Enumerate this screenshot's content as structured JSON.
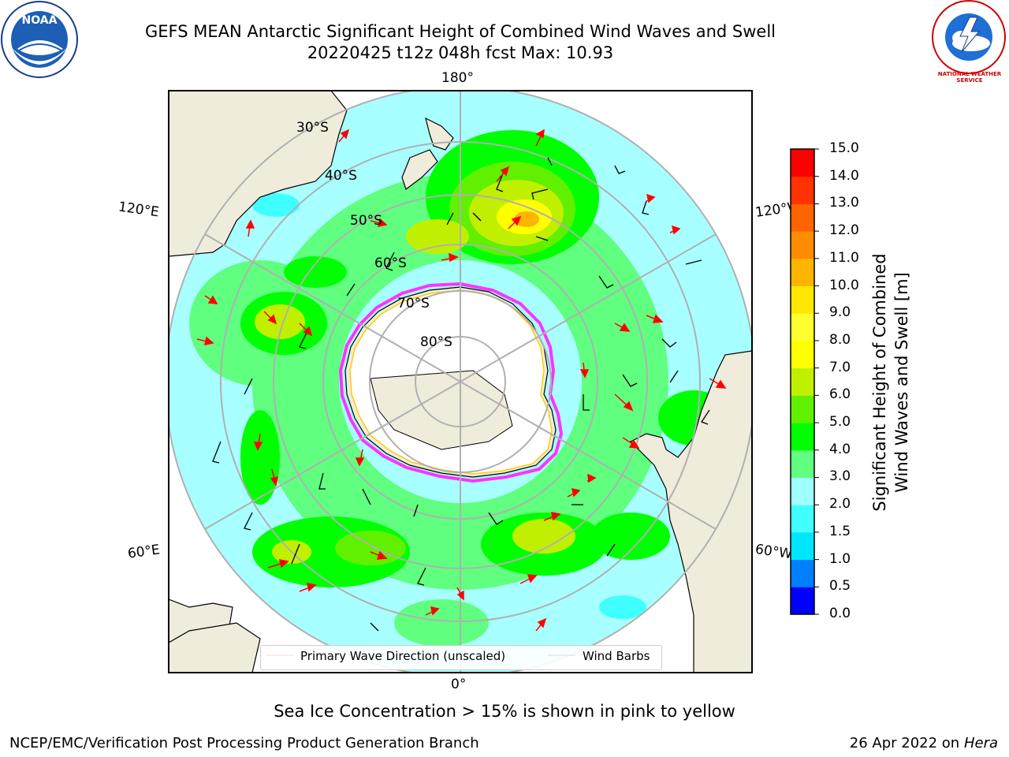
{
  "title": {
    "line1": "GEFS MEAN Antarctic Significant Height of Combined Wind Waves and Swell",
    "line2": "20220425 t12z 048h fcst   Max: 10.93"
  },
  "logos": {
    "left": {
      "text": "NOAA",
      "icon": "noaa-logo"
    },
    "right": {
      "text": "NATIONAL WEATHER SERVICE",
      "icon": "nws-logo"
    }
  },
  "map": {
    "projection": "south-polar-stereographic",
    "lat_labels": [
      "30°S",
      "40°S",
      "50°S",
      "60°S",
      "70°S",
      "80°S"
    ],
    "lon_labels": {
      "top": "180°",
      "bottom": "0°",
      "upper_left": "120°E",
      "upper_right": "120°W",
      "lower_left": "60°E",
      "lower_right": "60°W"
    },
    "colors": {
      "land": "#efecdc",
      "ice": "#ffffff",
      "ice_edge": "#ff33ff",
      "ice_edge_inner": "#ffcc00",
      "arrow": "#ff0000",
      "barb": "#000000",
      "grid": "#b0b0b0"
    }
  },
  "legend": {
    "wave_label": "Primary Wave Direction (unscaled)",
    "barb_label": "Wind Barbs"
  },
  "colorbar": {
    "label_line1": "Significant Height of Combined",
    "label_line2": "Wind Waves and Swell [m]",
    "ticks": [
      "0.0",
      "0.5",
      "1.0",
      "1.5",
      "2.0",
      "3.0",
      "4.0",
      "5.0",
      "6.0",
      "7.0",
      "8.0",
      "9.0",
      "10.0",
      "11.0",
      "12.0",
      "13.0",
      "14.0",
      "15.0"
    ],
    "colors": [
      "#0000ff",
      "#0080ff",
      "#00e6ff",
      "#40ffff",
      "#a0ffff",
      "#60ff80",
      "#00ff00",
      "#60f000",
      "#c0f000",
      "#ffff00",
      "#ffff30",
      "#ffe800",
      "#ffb400",
      "#ff8c00",
      "#ff6400",
      "#ff3200",
      "#ff0000"
    ]
  },
  "chart_data": {
    "type": "heatmap",
    "title": "GEFS MEAN Antarctic Significant Height of Combined Wind Waves and Swell",
    "variable": "Significant Height of Combined Wind Waves and Swell [m]",
    "valid": "20220425 t12z 048h fcst",
    "max": 10.93,
    "color_range": [
      0.0,
      15.0
    ],
    "levels": [
      0.0,
      0.5,
      1.0,
      1.5,
      2.0,
      3.0,
      4.0,
      5.0,
      6.0,
      7.0,
      8.0,
      9.0,
      10.0,
      11.0,
      12.0,
      13.0,
      14.0,
      15.0
    ],
    "grid": true
  },
  "notes": {
    "sea_ice": "Sea Ice Concentration > 15% is shown in pink to yellow"
  },
  "footer": {
    "left": "NCEP/EMC/Verification Post Processing Product Generation Branch",
    "right_date": "26 Apr 2022 on ",
    "right_machine": "Hera"
  }
}
